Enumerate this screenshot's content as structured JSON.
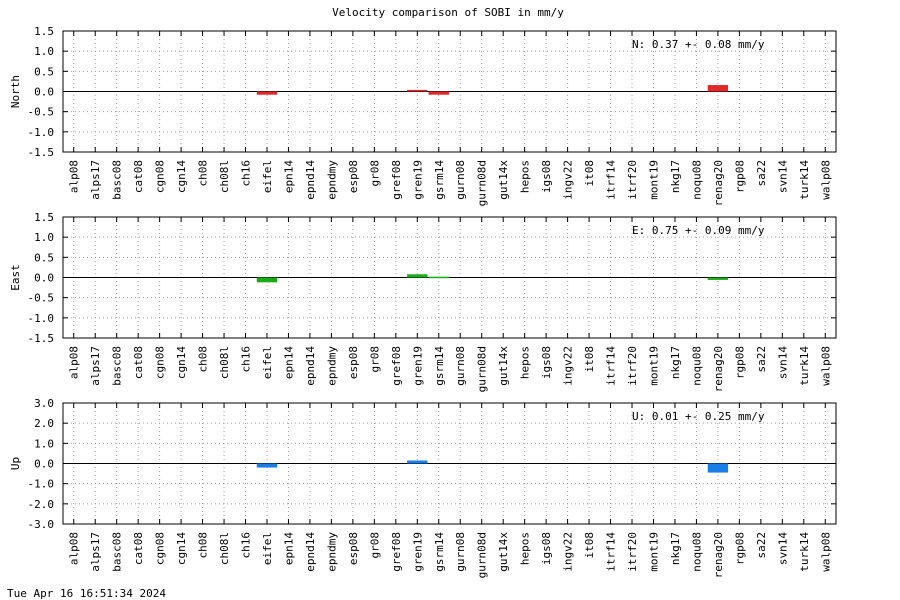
{
  "footer": {
    "timestamp": "Tue Apr 16 16:51:34 2024"
  },
  "chart_data": {
    "title": "Velocity comparison of SOBI in mm/y",
    "type": "bar",
    "grid": true,
    "categories": [
      "alp08",
      "alps17",
      "basc08",
      "cat08",
      "cgn08",
      "cgn14",
      "ch08",
      "ch08l",
      "ch16",
      "eifel",
      "epn14",
      "epnd14",
      "epndmy",
      "esp08",
      "gr08",
      "gref08",
      "gren19",
      "gsrm14",
      "gurn08",
      "gurn08d",
      "gut14x",
      "hepos",
      "igs08",
      "ingv22",
      "it08",
      "itrf14",
      "itrf20",
      "mont19",
      "nkg17",
      "noqu08",
      "renag20",
      "rgp08",
      "sa22",
      "svn14",
      "turk14",
      "walp08"
    ],
    "panels": [
      {
        "ylabel": "North",
        "ylim": [
          -1.5,
          1.5
        ],
        "yticks": [
          "1.5",
          "1.0",
          "0.5",
          "0.0",
          "-0.5",
          "-1.0",
          "-1.5"
        ],
        "ytick_values": [
          1.5,
          1.0,
          0.5,
          0.0,
          -0.5,
          -1.0,
          -1.5
        ],
        "stat_text": "N:   0.37 +-  0.08 mm/y",
        "color": "#e02a2a",
        "bars": [
          {
            "category": "eifel",
            "value": -0.08
          },
          {
            "category": "gren19",
            "value": 0.04
          },
          {
            "category": "gsrm14",
            "value": -0.08
          },
          {
            "category": "renag20",
            "value": 0.16
          }
        ]
      },
      {
        "ylabel": "East",
        "ylim": [
          -1.5,
          1.5
        ],
        "yticks": [
          "1.5",
          "1.0",
          "0.5",
          "0.0",
          "-0.5",
          "-1.0",
          "-1.5"
        ],
        "ytick_values": [
          1.5,
          1.0,
          0.5,
          0.0,
          -0.5,
          -1.0,
          -1.5
        ],
        "stat_text": "E:   0.75 +-  0.09 mm/y",
        "color": "#1aaa1a",
        "bars": [
          {
            "category": "eifel",
            "value": -0.12
          },
          {
            "category": "gren19",
            "value": 0.08
          },
          {
            "category": "gsrm14",
            "value": 0.02
          },
          {
            "category": "renag20",
            "value": -0.06
          }
        ]
      },
      {
        "ylabel": "Up",
        "ylim": [
          -3.0,
          3.0
        ],
        "yticks": [
          "3.0",
          "2.0",
          "1.0",
          "0.0",
          "-1.0",
          "-2.0",
          "-3.0"
        ],
        "ytick_values": [
          3.0,
          2.0,
          1.0,
          0.0,
          -1.0,
          -2.0,
          -3.0
        ],
        "stat_text": "U:   0.01 +-  0.25 mm/y",
        "color": "#1a7ee8",
        "bars": [
          {
            "category": "eifel",
            "value": -0.2
          },
          {
            "category": "gren19",
            "value": 0.15
          },
          {
            "category": "renag20",
            "value": -0.45
          }
        ]
      }
    ]
  }
}
